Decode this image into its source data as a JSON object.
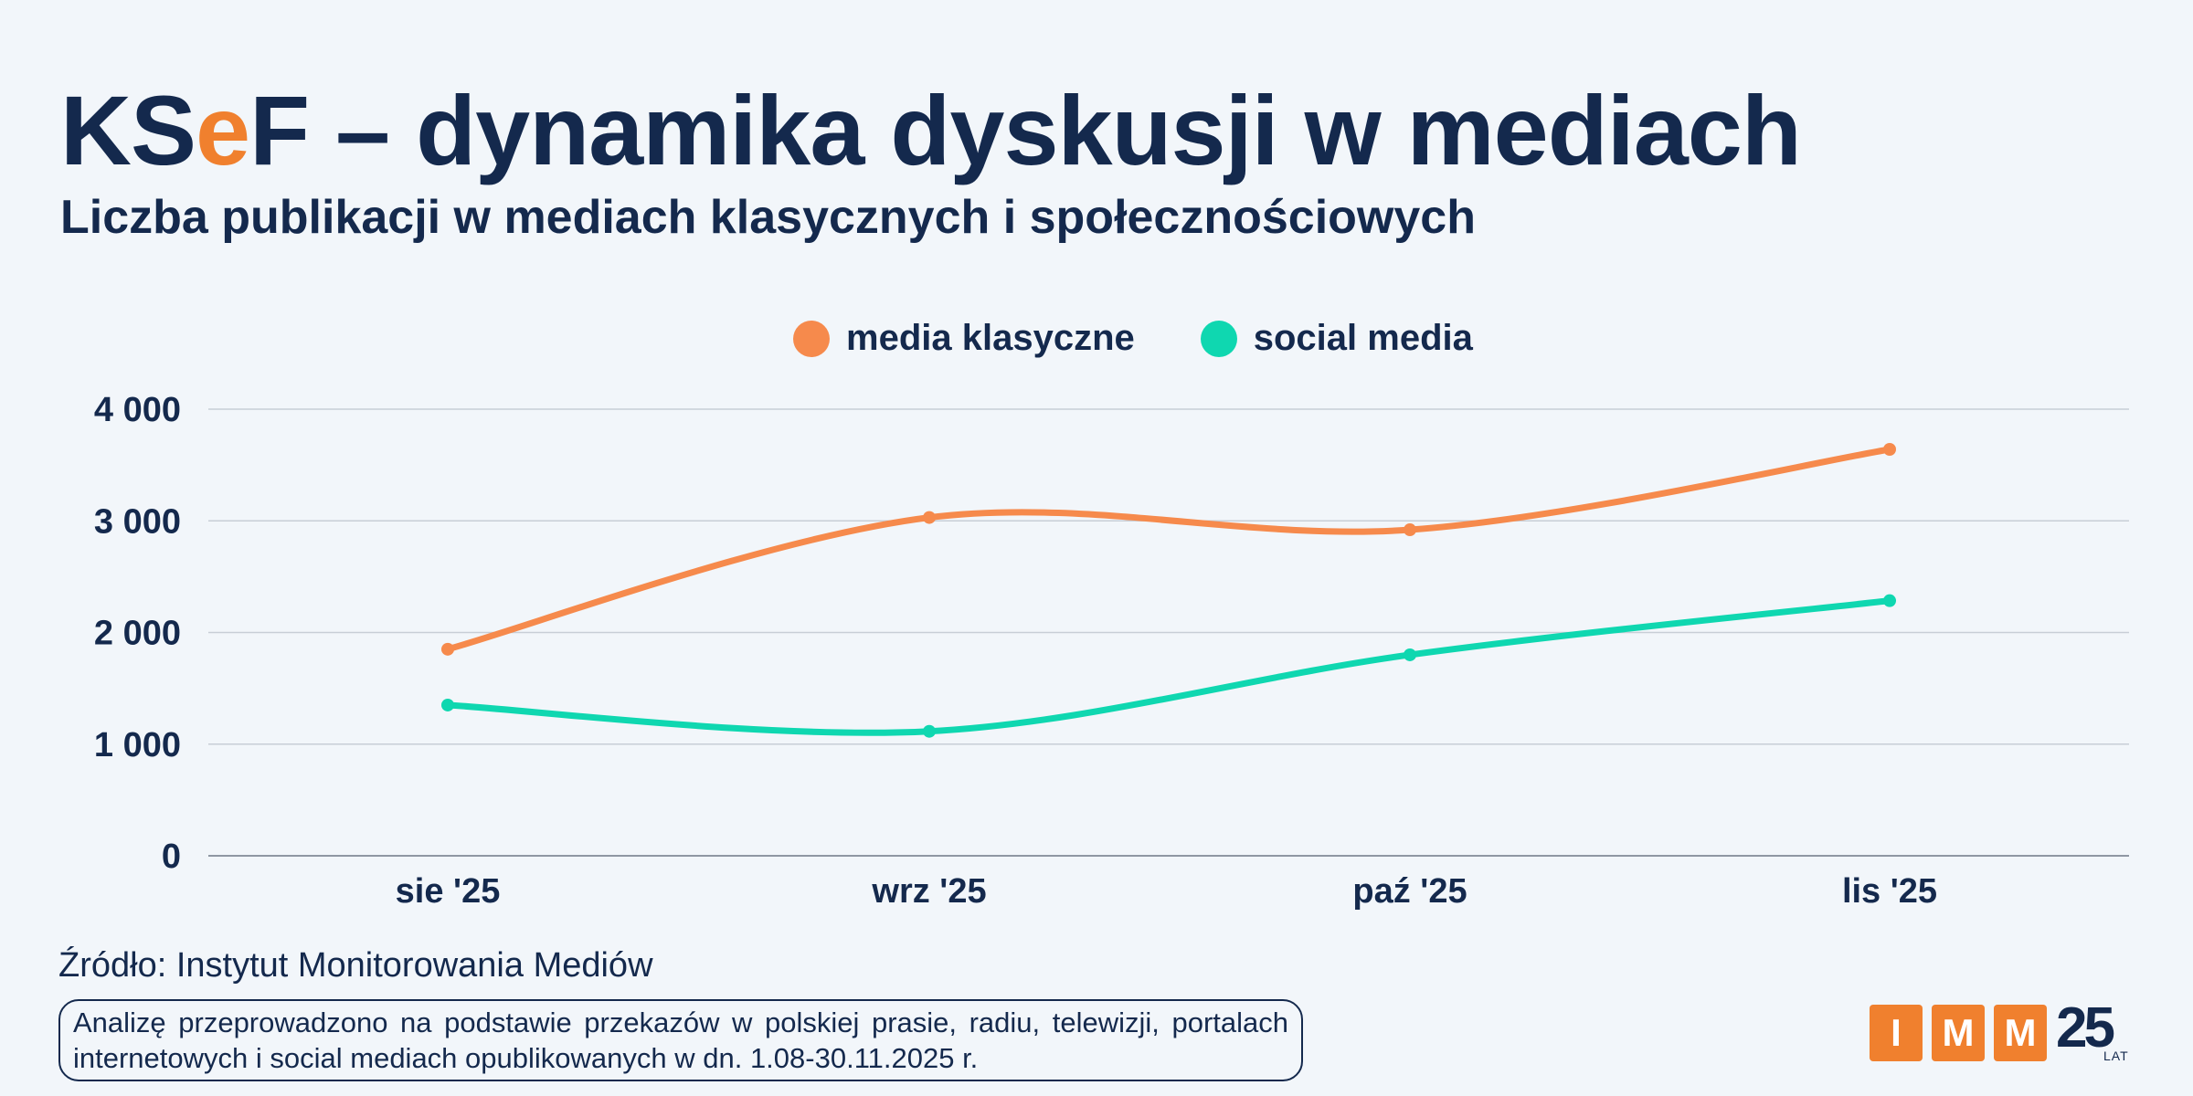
{
  "title": {
    "prefix_1": "KS",
    "accent": "e",
    "prefix_2": "F",
    "rest": " – dynamika dyskusji w mediach"
  },
  "subtitle": "Liczba publikacji w mediach klasycznych i społecznościowych",
  "colors": {
    "navy": "#14294d",
    "orange": "#f0802e",
    "classic": "#f68a4c",
    "social": "#0fd7b0",
    "grid": "#c8ced6"
  },
  "chart_data": {
    "type": "line",
    "title": "KSeF – dynamika dyskusji w mediach",
    "subtitle": "Liczba publikacji w mediach klasycznych i społecznościowych",
    "categories": [
      "sie '25",
      "wrz '25",
      "paź '25",
      "lis '25"
    ],
    "series": [
      {
        "name": "media klasyczne",
        "color": "#f68a4c",
        "values": [
          1850,
          3030,
          2920,
          3640
        ]
      },
      {
        "name": "social media",
        "color": "#0fd7b0",
        "values": [
          1350,
          1115,
          1800,
          2285
        ]
      }
    ],
    "y_ticks": [
      0,
      1000,
      2000,
      3000,
      4000
    ],
    "y_tick_labels": [
      "0",
      "1 000",
      "2 000",
      "3 000",
      "4 000"
    ],
    "ylim": [
      0,
      4000
    ],
    "xlabel": "",
    "ylabel": "",
    "grid": true,
    "legend_position": "top-center"
  },
  "legend": [
    {
      "label": "media klasyczne",
      "color": "#f68a4c"
    },
    {
      "label": "social media",
      "color": "#0fd7b0"
    }
  ],
  "source": "Źródło: Instytut Monitorowania Mediów",
  "note": "Analizę przeprowadzono na podstawie przekazów w polskiej prasie, radiu, telewizji, portalach internetowych i social mediach opublikowanych w dn. 1.08-30.11.2025 r.",
  "logo": {
    "letters": [
      "I",
      "M",
      "M"
    ],
    "number": "25",
    "caption": "LAT"
  }
}
